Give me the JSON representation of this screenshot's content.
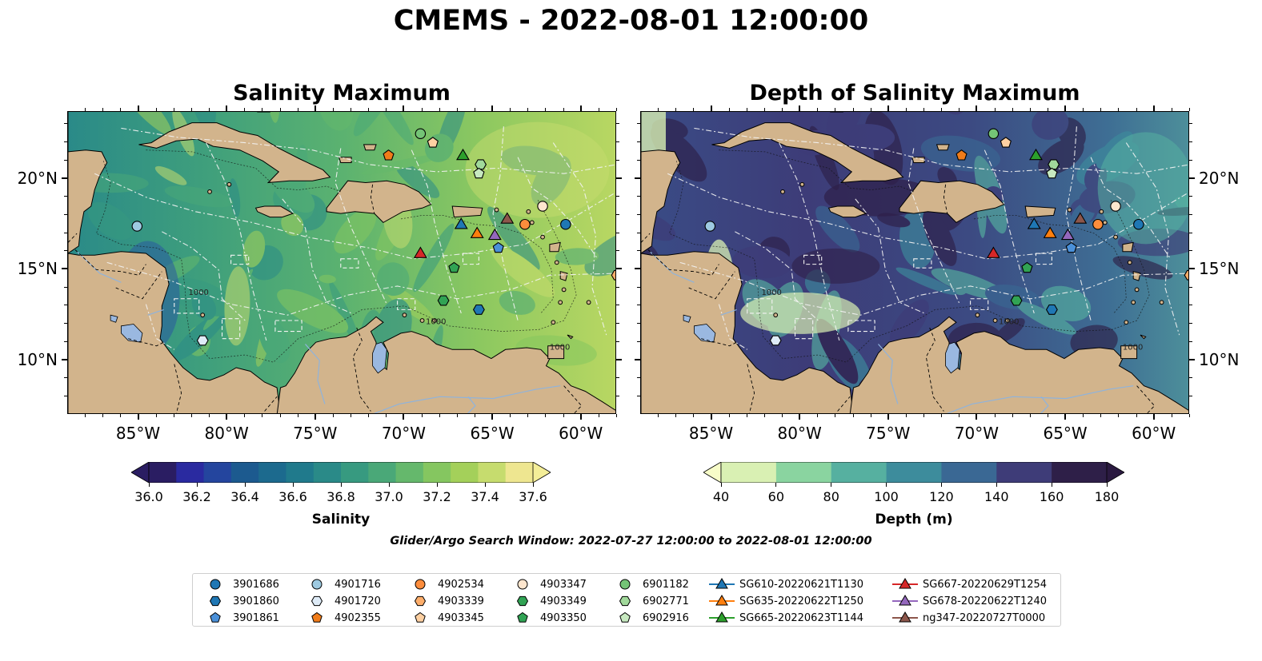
{
  "figure": {
    "suptitle": "CMEMS - 2022-08-01 12:00:00",
    "search_window": "Glider/Argo Search Window: 2022-07-27 12:00:00 to 2022-08-01 12:00:00"
  },
  "panels": [
    {
      "title": "Salinity Maximum",
      "colorbar": {
        "label": "Salinity",
        "ticks": [
          "36.0",
          "36.2",
          "36.4",
          "36.6",
          "36.8",
          "37.0",
          "37.2",
          "37.4",
          "37.6"
        ],
        "colors": [
          "#2a1d62",
          "#2a2aa0",
          "#24459e",
          "#1c5a8f",
          "#1c6a8e",
          "#207a8c",
          "#2a8a88",
          "#379a80",
          "#4aa878",
          "#65b86c",
          "#85c660",
          "#a4d05a",
          "#c6dc6e",
          "#eee690"
        ],
        "extend": "both"
      }
    },
    {
      "title": "Depth of Salinity Maximum",
      "colorbar": {
        "label": "Depth (m)",
        "ticks": [
          "40",
          "60",
          "80",
          "100",
          "120",
          "140",
          "160",
          "180"
        ],
        "colors": [
          "#d9f0b3",
          "#8ad4a0",
          "#56b0a0",
          "#3d8c9c",
          "#3a6894",
          "#3e3c78",
          "#2e1f48"
        ],
        "extend": "both"
      }
    }
  ],
  "map": {
    "lon_range": [
      -89,
      -58
    ],
    "lat_range": [
      7,
      23.7
    ],
    "lon_ticks": [
      -85,
      -80,
      -75,
      -70,
      -65,
      -60
    ],
    "lon_tick_labels": [
      "85°W",
      "80°W",
      "75°W",
      "70°W",
      "65°W",
      "60°W"
    ],
    "lat_ticks": [
      20,
      15,
      10
    ],
    "lat_tick_labels": [
      "20°N",
      "15°N",
      "10°N"
    ],
    "contour_labels": [
      "1000",
      "1000",
      "1000"
    ],
    "land_color": "#d2b48c",
    "lake_color": "#9ab8e0"
  },
  "observations": [
    {
      "id": "3901686",
      "marker": "circle",
      "color": "#1f77b4",
      "lon": -60.9,
      "lat": 17.5
    },
    {
      "id": "3901860",
      "marker": "hexagon",
      "color": "#1f77b4",
      "lon": -65.8,
      "lat": 12.8
    },
    {
      "id": "3901861",
      "marker": "pentagon",
      "color": "#4a90d9",
      "lon": -64.7,
      "lat": 16.2
    },
    {
      "id": "4901716",
      "marker": "circle",
      "color": "#9ecae1",
      "lon": -85.1,
      "lat": 17.4
    },
    {
      "id": "4901720",
      "marker": "hexagon",
      "color": "#deebf7",
      "lon": -81.4,
      "lat": 11.1
    },
    {
      "id": "4902355",
      "marker": "pentagon",
      "color": "#f07c1a",
      "lon": -70.9,
      "lat": 21.3
    },
    {
      "id": "4902534",
      "marker": "circle",
      "color": "#fd8d3c",
      "lon": -63.2,
      "lat": 17.5
    },
    {
      "id": "4903339",
      "marker": "hexagon",
      "color": "#fdae6b",
      "lon": -58.0,
      "lat": 14.7
    },
    {
      "id": "4903345",
      "marker": "pentagon",
      "color": "#fdd0a2",
      "lon": -68.4,
      "lat": 22.0
    },
    {
      "id": "4903347",
      "marker": "circle",
      "color": "#fee6ce",
      "lon": -62.2,
      "lat": 18.5
    },
    {
      "id": "4903349",
      "marker": "hexagon",
      "color": "#31a354",
      "lon": -67.8,
      "lat": 13.3
    },
    {
      "id": "4903350",
      "marker": "pentagon",
      "color": "#31a354",
      "lon": -67.2,
      "lat": 15.1
    },
    {
      "id": "6901182",
      "marker": "circle",
      "color": "#74c476",
      "lon": -69.1,
      "lat": 22.5
    },
    {
      "id": "6902771",
      "marker": "hexagon",
      "color": "#a1d99b",
      "lon": -65.7,
      "lat": 20.8
    },
    {
      "id": "6902916",
      "marker": "pentagon",
      "color": "#c7e9c0",
      "lon": -65.8,
      "lat": 20.3
    }
  ],
  "gliders": [
    {
      "id": "SG610-20220621T1130",
      "color": "#1f77b4",
      "lon": -66.8,
      "lat": 17.5
    },
    {
      "id": "SG635-20220622T1250",
      "color": "#ff7f0e",
      "lon": -65.9,
      "lat": 17.0
    },
    {
      "id": "SG665-20220623T1144",
      "color": "#2ca02c",
      "lon": -66.7,
      "lat": 21.3
    },
    {
      "id": "SG667-20220629T1254",
      "color": "#d62728",
      "lon": -69.1,
      "lat": 15.9
    },
    {
      "id": "SG678-20220622T1240",
      "color": "#9467bd",
      "lon": -64.9,
      "lat": 16.9
    },
    {
      "id": "ng347-20220727T0000",
      "color": "#8c564b",
      "lon": -64.2,
      "lat": 17.8
    }
  ]
}
